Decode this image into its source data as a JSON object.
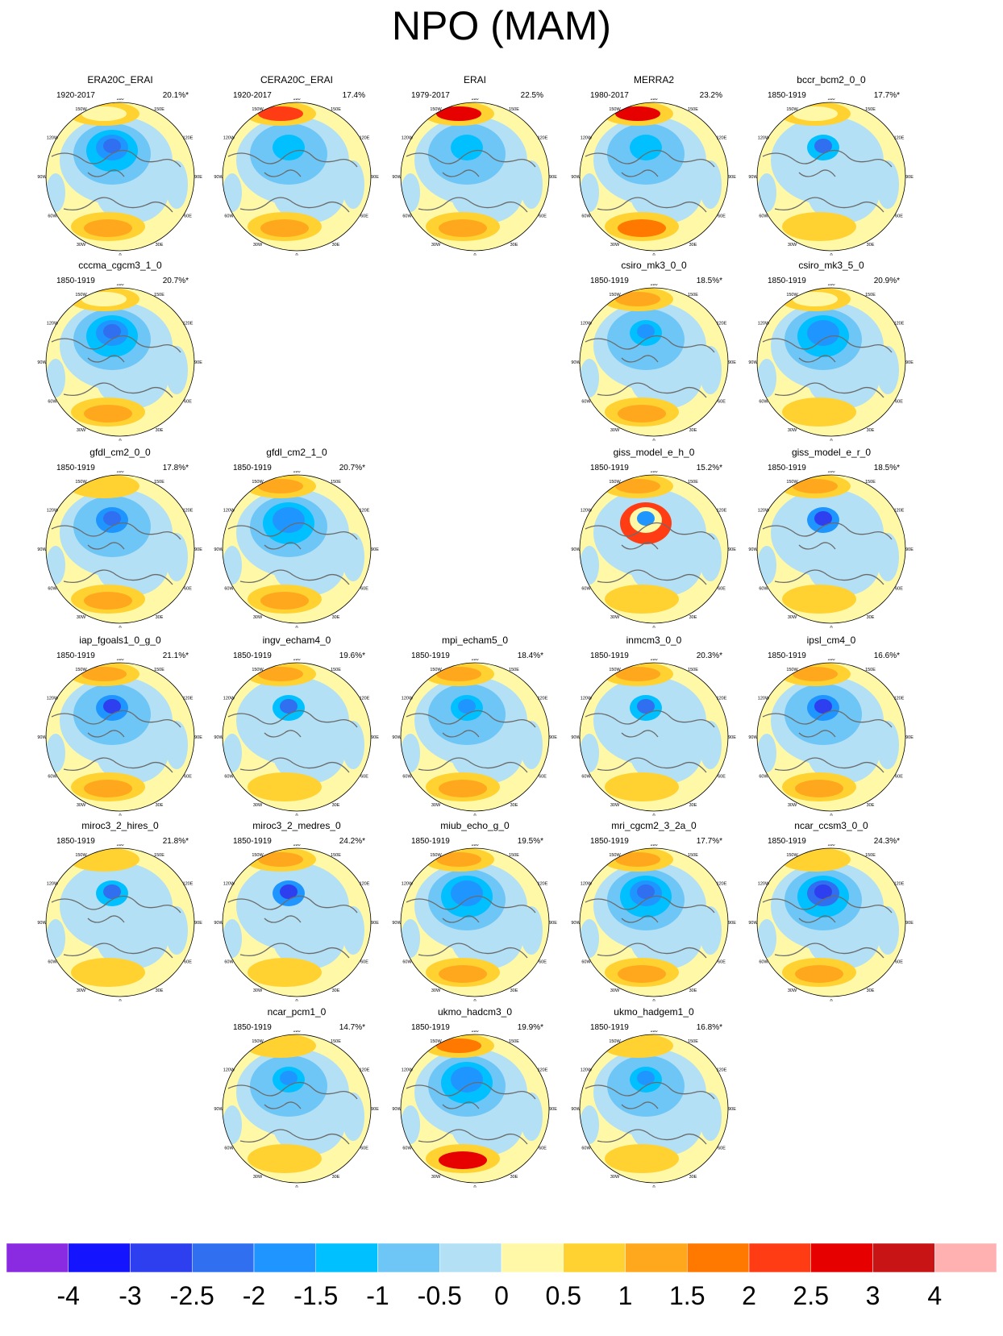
{
  "title": "NPO (MAM)",
  "panels": [
    {
      "name": "ERA20C_ERAI",
      "years": "1920-2017",
      "pct": "20.1%*",
      "row": 0,
      "col": 0,
      "pattern": [
        -2.5,
        -1.5,
        1.0,
        0.3
      ]
    },
    {
      "name": "CERA20C_ERAI",
      "years": "1920-2017",
      "pct": "17.4%",
      "row": 0,
      "col": 1,
      "pattern": [
        -1.5,
        -1.0,
        1.0,
        2.0
      ]
    },
    {
      "name": "ERAI",
      "years": "1979-2017",
      "pct": "22.5%",
      "row": 0,
      "col": 2,
      "pattern": [
        -1.5,
        -1.0,
        1.0,
        2.5
      ]
    },
    {
      "name": "MERRA2",
      "years": "1980-2017",
      "pct": "23.2%",
      "row": 0,
      "col": 3,
      "pattern": [
        -1.5,
        -1.0,
        1.5,
        2.5
      ]
    },
    {
      "name": "bccr_bcm2_0_0",
      "years": "1850-1919",
      "pct": "17.7%*",
      "row": 0,
      "col": 4,
      "pattern": [
        -2.5,
        -0.5,
        0.5,
        0.3
      ]
    },
    {
      "name": "cccma_cgcm3_1_0",
      "years": "1850-1919",
      "pct": "20.7%*",
      "row": 1,
      "col": 0,
      "pattern": [
        -2.5,
        -1.5,
        1.0,
        0.3
      ]
    },
    {
      "name": "csiro_mk3_0_0",
      "years": "1850-1919",
      "pct": "18.5%*",
      "row": 1,
      "col": 3,
      "pattern": [
        -2.0,
        -1.0,
        1.0,
        1.0
      ]
    },
    {
      "name": "csiro_mk3_5_0",
      "years": "1850-1919",
      "pct": "20.9%*",
      "row": 1,
      "col": 4,
      "pattern": [
        -2.0,
        -1.5,
        0.5,
        0.3
      ]
    },
    {
      "name": "gfdl_cm2_0_0",
      "years": "1850-1919",
      "pct": "17.8%*",
      "row": 2,
      "col": 0,
      "pattern": [
        -2.5,
        -1.0,
        1.0,
        0.5
      ]
    },
    {
      "name": "gfdl_cm2_1_0",
      "years": "1850-1919",
      "pct": "20.7%*",
      "row": 2,
      "col": 1,
      "pattern": [
        -2.0,
        -1.5,
        1.0,
        1.0
      ]
    },
    {
      "name": "giss_model_e_h_0",
      "years": "1850-1919",
      "pct": "15.2%*",
      "row": 2,
      "col": 3,
      "pattern": [
        -2.0,
        2.0,
        0.5,
        1.0
      ]
    },
    {
      "name": "giss_model_e_r_0",
      "years": "1850-1919",
      "pct": "18.5%*",
      "row": 2,
      "col": 4,
      "pattern": [
        -3.0,
        -0.5,
        0.5,
        1.0
      ]
    },
    {
      "name": "iap_fgoals1_0_g_0",
      "years": "1850-1919",
      "pct": "21.1%*",
      "row": 3,
      "col": 0,
      "pattern": [
        -3.0,
        -1.0,
        1.0,
        1.0
      ]
    },
    {
      "name": "ingv_echam4_0",
      "years": "1850-1919",
      "pct": "19.6%*",
      "row": 3,
      "col": 1,
      "pattern": [
        -2.5,
        -0.5,
        0.5,
        1.0
      ]
    },
    {
      "name": "mpi_echam5_0",
      "years": "1850-1919",
      "pct": "18.4%*",
      "row": 3,
      "col": 2,
      "pattern": [
        -2.0,
        -1.0,
        1.0,
        1.0
      ]
    },
    {
      "name": "inmcm3_0_0",
      "years": "1850-1919",
      "pct": "20.3%*",
      "row": 3,
      "col": 3,
      "pattern": [
        -2.5,
        -0.5,
        0.5,
        1.0
      ]
    },
    {
      "name": "ipsl_cm4_0",
      "years": "1850-1919",
      "pct": "16.6%*",
      "row": 3,
      "col": 4,
      "pattern": [
        -3.0,
        -1.0,
        1.0,
        1.0
      ]
    },
    {
      "name": "miroc3_2_hires_0",
      "years": "1850-1919",
      "pct": "21.8%*",
      "row": 4,
      "col": 0,
      "pattern": [
        -2.5,
        -0.5,
        0.5,
        0.5
      ]
    },
    {
      "name": "miroc3_2_medres_0",
      "years": "1850-1919",
      "pct": "24.2%*",
      "row": 4,
      "col": 1,
      "pattern": [
        -3.0,
        -0.5,
        0.5,
        1.0
      ]
    },
    {
      "name": "miub_echo_g_0",
      "years": "1850-1919",
      "pct": "19.5%*",
      "row": 4,
      "col": 2,
      "pattern": [
        -2.0,
        -1.5,
        1.0,
        1.0
      ]
    },
    {
      "name": "mri_cgcm2_3_2a_0",
      "years": "1850-1919",
      "pct": "17.7%*",
      "row": 4,
      "col": 3,
      "pattern": [
        -2.5,
        -1.5,
        1.0,
        1.0
      ]
    },
    {
      "name": "ncar_ccsm3_0_0",
      "years": "1850-1919",
      "pct": "24.3%*",
      "row": 4,
      "col": 4,
      "pattern": [
        -3.0,
        -1.5,
        1.0,
        0.5
      ]
    },
    {
      "name": "ncar_pcm1_0",
      "years": "1850-1919",
      "pct": "14.7%*",
      "row": 5,
      "col": 1,
      "pattern": [
        -2.0,
        -1.0,
        0.5,
        0.5
      ]
    },
    {
      "name": "ukmo_hadcm3_0",
      "years": "1850-1919",
      "pct": "19.9%*",
      "row": 5,
      "col": 2,
      "pattern": [
        -2.0,
        -1.5,
        2.5,
        1.5
      ]
    },
    {
      "name": "ukmo_hadgem1_0",
      "years": "1850-1919",
      "pct": "16.8%*",
      "row": 5,
      "col": 3,
      "pattern": [
        -2.0,
        -1.0,
        0.5,
        0.5
      ]
    }
  ],
  "lon_labels": [
    "180",
    "150E",
    "120E",
    "90E",
    "60E",
    "30E",
    "0",
    "30W",
    "60W",
    "90W",
    "120W",
    "150W"
  ],
  "colorbar": {
    "labels": [
      "-4",
      "-3",
      "-2.5",
      "-2",
      "-1.5",
      "-1",
      "-0.5",
      "0",
      "0.5",
      "1",
      "1.5",
      "2",
      "2.5",
      "3",
      "4"
    ],
    "colors": [
      "#8A2BE2",
      "#1414FF",
      "#2E3FEF",
      "#2F6FF0",
      "#1F96FF",
      "#00C0FF",
      "#6EC6F7",
      "#B3E0F5",
      "#FFF9A7",
      "#FFD232",
      "#FFA81E",
      "#FF7800",
      "#FF3C14",
      "#E60000",
      "#C81414",
      "#FFB0B0"
    ]
  }
}
